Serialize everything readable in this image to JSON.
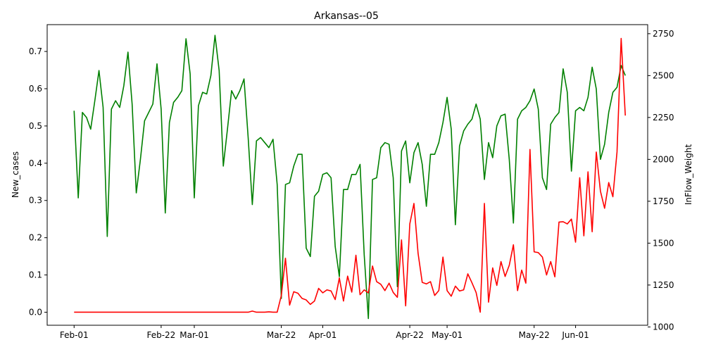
{
  "chart_data": {
    "type": "line",
    "title": "Arkansas--05",
    "ylabel_left": "New_cases",
    "ylabel_right": "InFlow_Weight",
    "x_ticks": [
      "Feb-01",
      "Feb-22",
      "Mar-01",
      "Mar-22",
      "Apr-01",
      "Apr-22",
      "May-01",
      "May-22",
      "Jun-01"
    ],
    "x_tick_days": [
      0,
      21,
      29,
      50,
      60,
      81,
      90,
      111,
      121
    ],
    "x_range_days": [
      -6.5,
      138.4
    ],
    "left_axis": {
      "ylim": [
        -0.035,
        0.772
      ],
      "ticks": [
        0.0,
        0.1,
        0.2,
        0.3,
        0.4,
        0.5,
        0.6,
        0.7
      ],
      "tick_labels": [
        "0.0",
        "0.1",
        "0.2",
        "0.3",
        "0.4",
        "0.5",
        "0.6",
        "0.7"
      ]
    },
    "right_axis": {
      "ylim": [
        1010,
        2804
      ],
      "ticks": [
        1000,
        1250,
        1500,
        1750,
        2000,
        2250,
        2500,
        2750
      ],
      "tick_labels": [
        "1000",
        "1250",
        "1500",
        "1750",
        "2000",
        "2250",
        "2500",
        "2750"
      ]
    },
    "series": [
      {
        "axis": "right",
        "color": "#008000",
        "x_start_day": 0,
        "values": [
          2290,
          1770,
          2280,
          2250,
          2180,
          2350,
          2530,
          2310,
          1540,
          2300,
          2350,
          2310,
          2440,
          2640,
          2330,
          1800,
          2000,
          2230,
          2280,
          2330,
          2570,
          2300,
          1680,
          2220,
          2340,
          2370,
          2410,
          2720,
          2510,
          1770,
          2320,
          2400,
          2390,
          2500,
          2740,
          2530,
          1960,
          2180,
          2410,
          2360,
          2410,
          2480,
          2130,
          1730,
          2110,
          2130,
          2100,
          2070,
          2120,
          1850,
          1170,
          1850,
          1860,
          1960,
          2030,
          2030,
          1470,
          1420,
          1780,
          1810,
          1910,
          1920,
          1890,
          1480,
          1300,
          1820,
          1820,
          1910,
          1910,
          1970,
          1430,
          1050,
          1880,
          1890,
          2070,
          2100,
          2090,
          1890,
          1240,
          2050,
          2110,
          1860,
          2040,
          2100,
          1970,
          1720,
          2030,
          2030,
          2100,
          2220,
          2370,
          2180,
          1610,
          2080,
          2170,
          2210,
          2240,
          2330,
          2240,
          1880,
          2100,
          2010,
          2200,
          2260,
          2270,
          2000,
          1620,
          2240,
          2290,
          2310,
          2350,
          2420,
          2300,
          1890,
          1820,
          2210,
          2250,
          2280,
          2540,
          2400,
          1930,
          2290,
          2310,
          2290,
          2370,
          2550,
          2420,
          2000,
          2090,
          2280,
          2400,
          2430,
          2560,
          2500
        ]
      },
      {
        "axis": "left",
        "color": "#ff0000",
        "x_start_day": 0,
        "values": [
          0,
          0,
          0,
          0,
          0,
          0,
          0,
          0,
          0,
          0,
          0,
          0,
          0,
          0,
          0,
          0,
          0,
          0,
          0,
          0,
          0,
          0,
          0,
          0,
          0,
          0,
          0,
          0,
          0,
          0,
          0,
          0,
          0,
          0,
          0,
          0,
          0,
          0,
          0,
          0,
          0,
          0,
          0,
          0.003,
          0,
          0,
          0,
          0.001,
          0,
          0,
          0.045,
          0.145,
          0.019,
          0.055,
          0.051,
          0.037,
          0.033,
          0.021,
          0.03,
          0.064,
          0.052,
          0.06,
          0.057,
          0.034,
          0.092,
          0.03,
          0.097,
          0.054,
          0.153,
          0.047,
          0.06,
          0.052,
          0.124,
          0.082,
          0.075,
          0.058,
          0.078,
          0.053,
          0.04,
          0.194,
          0.017,
          0.237,
          0.292,
          0.158,
          0.08,
          0.076,
          0.082,
          0.045,
          0.058,
          0.148,
          0.058,
          0.043,
          0.07,
          0.057,
          0.06,
          0.103,
          0.079,
          0.053,
          0,
          0.292,
          0.027,
          0.119,
          0.072,
          0.136,
          0.096,
          0.126,
          0.181,
          0.058,
          0.113,
          0.078,
          0.437,
          0.162,
          0.16,
          0.148,
          0.1,
          0.136,
          0.095,
          0.242,
          0.243,
          0.237,
          0.25,
          0.188,
          0.361,
          0.205,
          0.377,
          0.216,
          0.43,
          0.325,
          0.279,
          0.348,
          0.31,
          0.43,
          0.735,
          0.528
        ]
      }
    ]
  }
}
